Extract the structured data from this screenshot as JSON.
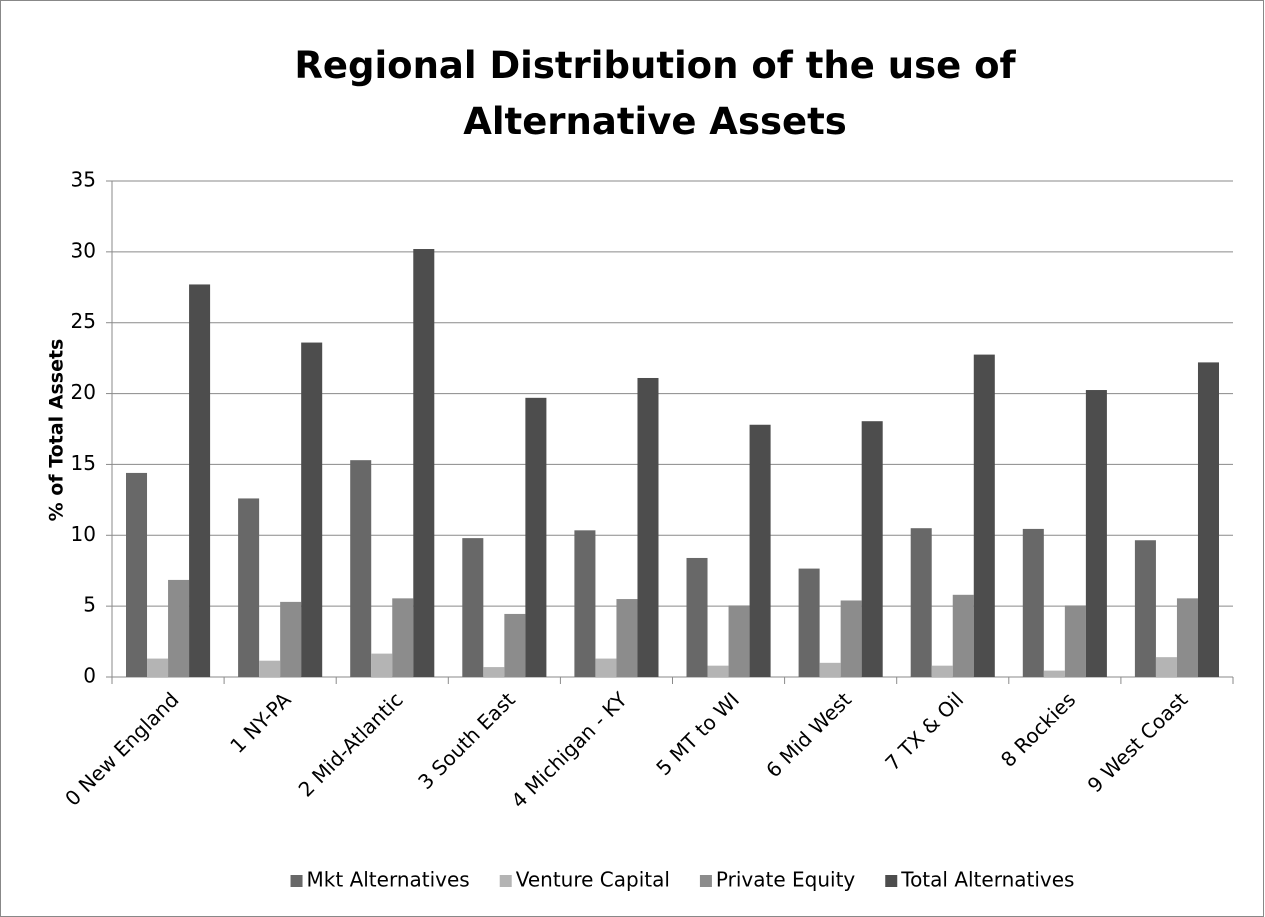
{
  "chart_data": {
    "type": "bar",
    "title": "Regional Distribution of the use of Alternative Assets",
    "y_label": "% of Total Assets",
    "categories": [
      "0 New England",
      "1 NY-PA",
      "2 Mid-Atlantic",
      "3 South East",
      "4 Michigan - KY",
      "5 MT to WI",
      "6 Mid West",
      "7 TX & Oil",
      "8 Rockies",
      "9 West Coast"
    ],
    "series": [
      {
        "name": "Mkt Alternatives",
        "color": "#686868",
        "values": [
          14.4,
          12.6,
          15.3,
          9.8,
          10.35,
          8.4,
          7.65,
          10.5,
          10.45,
          9.65
        ]
      },
      {
        "name": "Venture Capital",
        "color": "#b4b4b4",
        "values": [
          1.3,
          1.15,
          1.65,
          0.7,
          1.3,
          0.8,
          1.0,
          0.8,
          0.45,
          1.4
        ]
      },
      {
        "name": "Private Equity",
        "color": "#8c8c8c",
        "values": [
          6.85,
          5.3,
          5.55,
          4.45,
          5.5,
          5.05,
          5.4,
          5.8,
          5.05,
          5.55
        ]
      },
      {
        "name": "Total Alternatives",
        "color": "#4d4d4d",
        "values": [
          27.7,
          23.6,
          30.2,
          19.7,
          21.1,
          17.8,
          18.05,
          22.75,
          20.25,
          22.2
        ]
      }
    ],
    "ylim": [
      0,
      35
    ],
    "yticks": [
      0,
      5,
      10,
      15,
      20,
      25,
      30,
      35
    ],
    "grid": true,
    "legend": "bottom"
  }
}
